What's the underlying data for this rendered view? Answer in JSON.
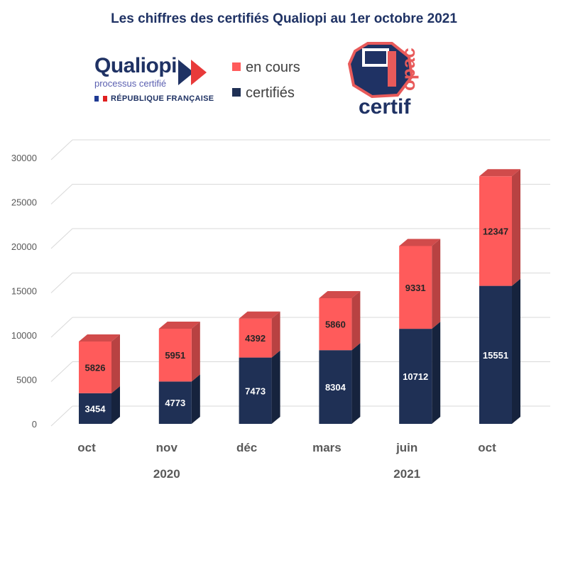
{
  "header": {
    "title": "Les chiffres des certifiés Qualiopi au 1er octobre 2021"
  },
  "logos": {
    "qualiopi_word": "Qualiopi",
    "qualiopi_sub": "processus certifié",
    "republique": "RÉPUBLIQUE FRANÇAISE",
    "certif": "certif",
    "opac": "opac"
  },
  "legend": {
    "en_cours": "en cours",
    "certifies": "certifiés"
  },
  "colors": {
    "en_cours": "#ff5b5b",
    "certifies": "#1f3055",
    "title": "#1f3264",
    "grid": "#d9d9d9"
  },
  "chart_data": {
    "type": "bar",
    "stacked": true,
    "style": "3d",
    "categories": [
      "oct",
      "nov",
      "déc",
      "mars",
      "juin",
      "oct"
    ],
    "year_labels": [
      {
        "label": "2020",
        "categories": [
          "oct",
          "nov",
          "déc"
        ]
      },
      {
        "label": "2021",
        "categories": [
          "mars",
          "juin",
          "oct"
        ]
      }
    ],
    "series": [
      {
        "name": "certifiés",
        "values": [
          3454,
          4773,
          7473,
          8304,
          10712,
          15551
        ]
      },
      {
        "name": "en cours",
        "values": [
          5826,
          5951,
          4392,
          5860,
          9331,
          12347
        ]
      }
    ],
    "ylim": [
      0,
      30000
    ],
    "yticks": [
      0,
      5000,
      10000,
      15000,
      20000,
      25000,
      30000
    ],
    "grid": true,
    "legend_position": "top"
  }
}
